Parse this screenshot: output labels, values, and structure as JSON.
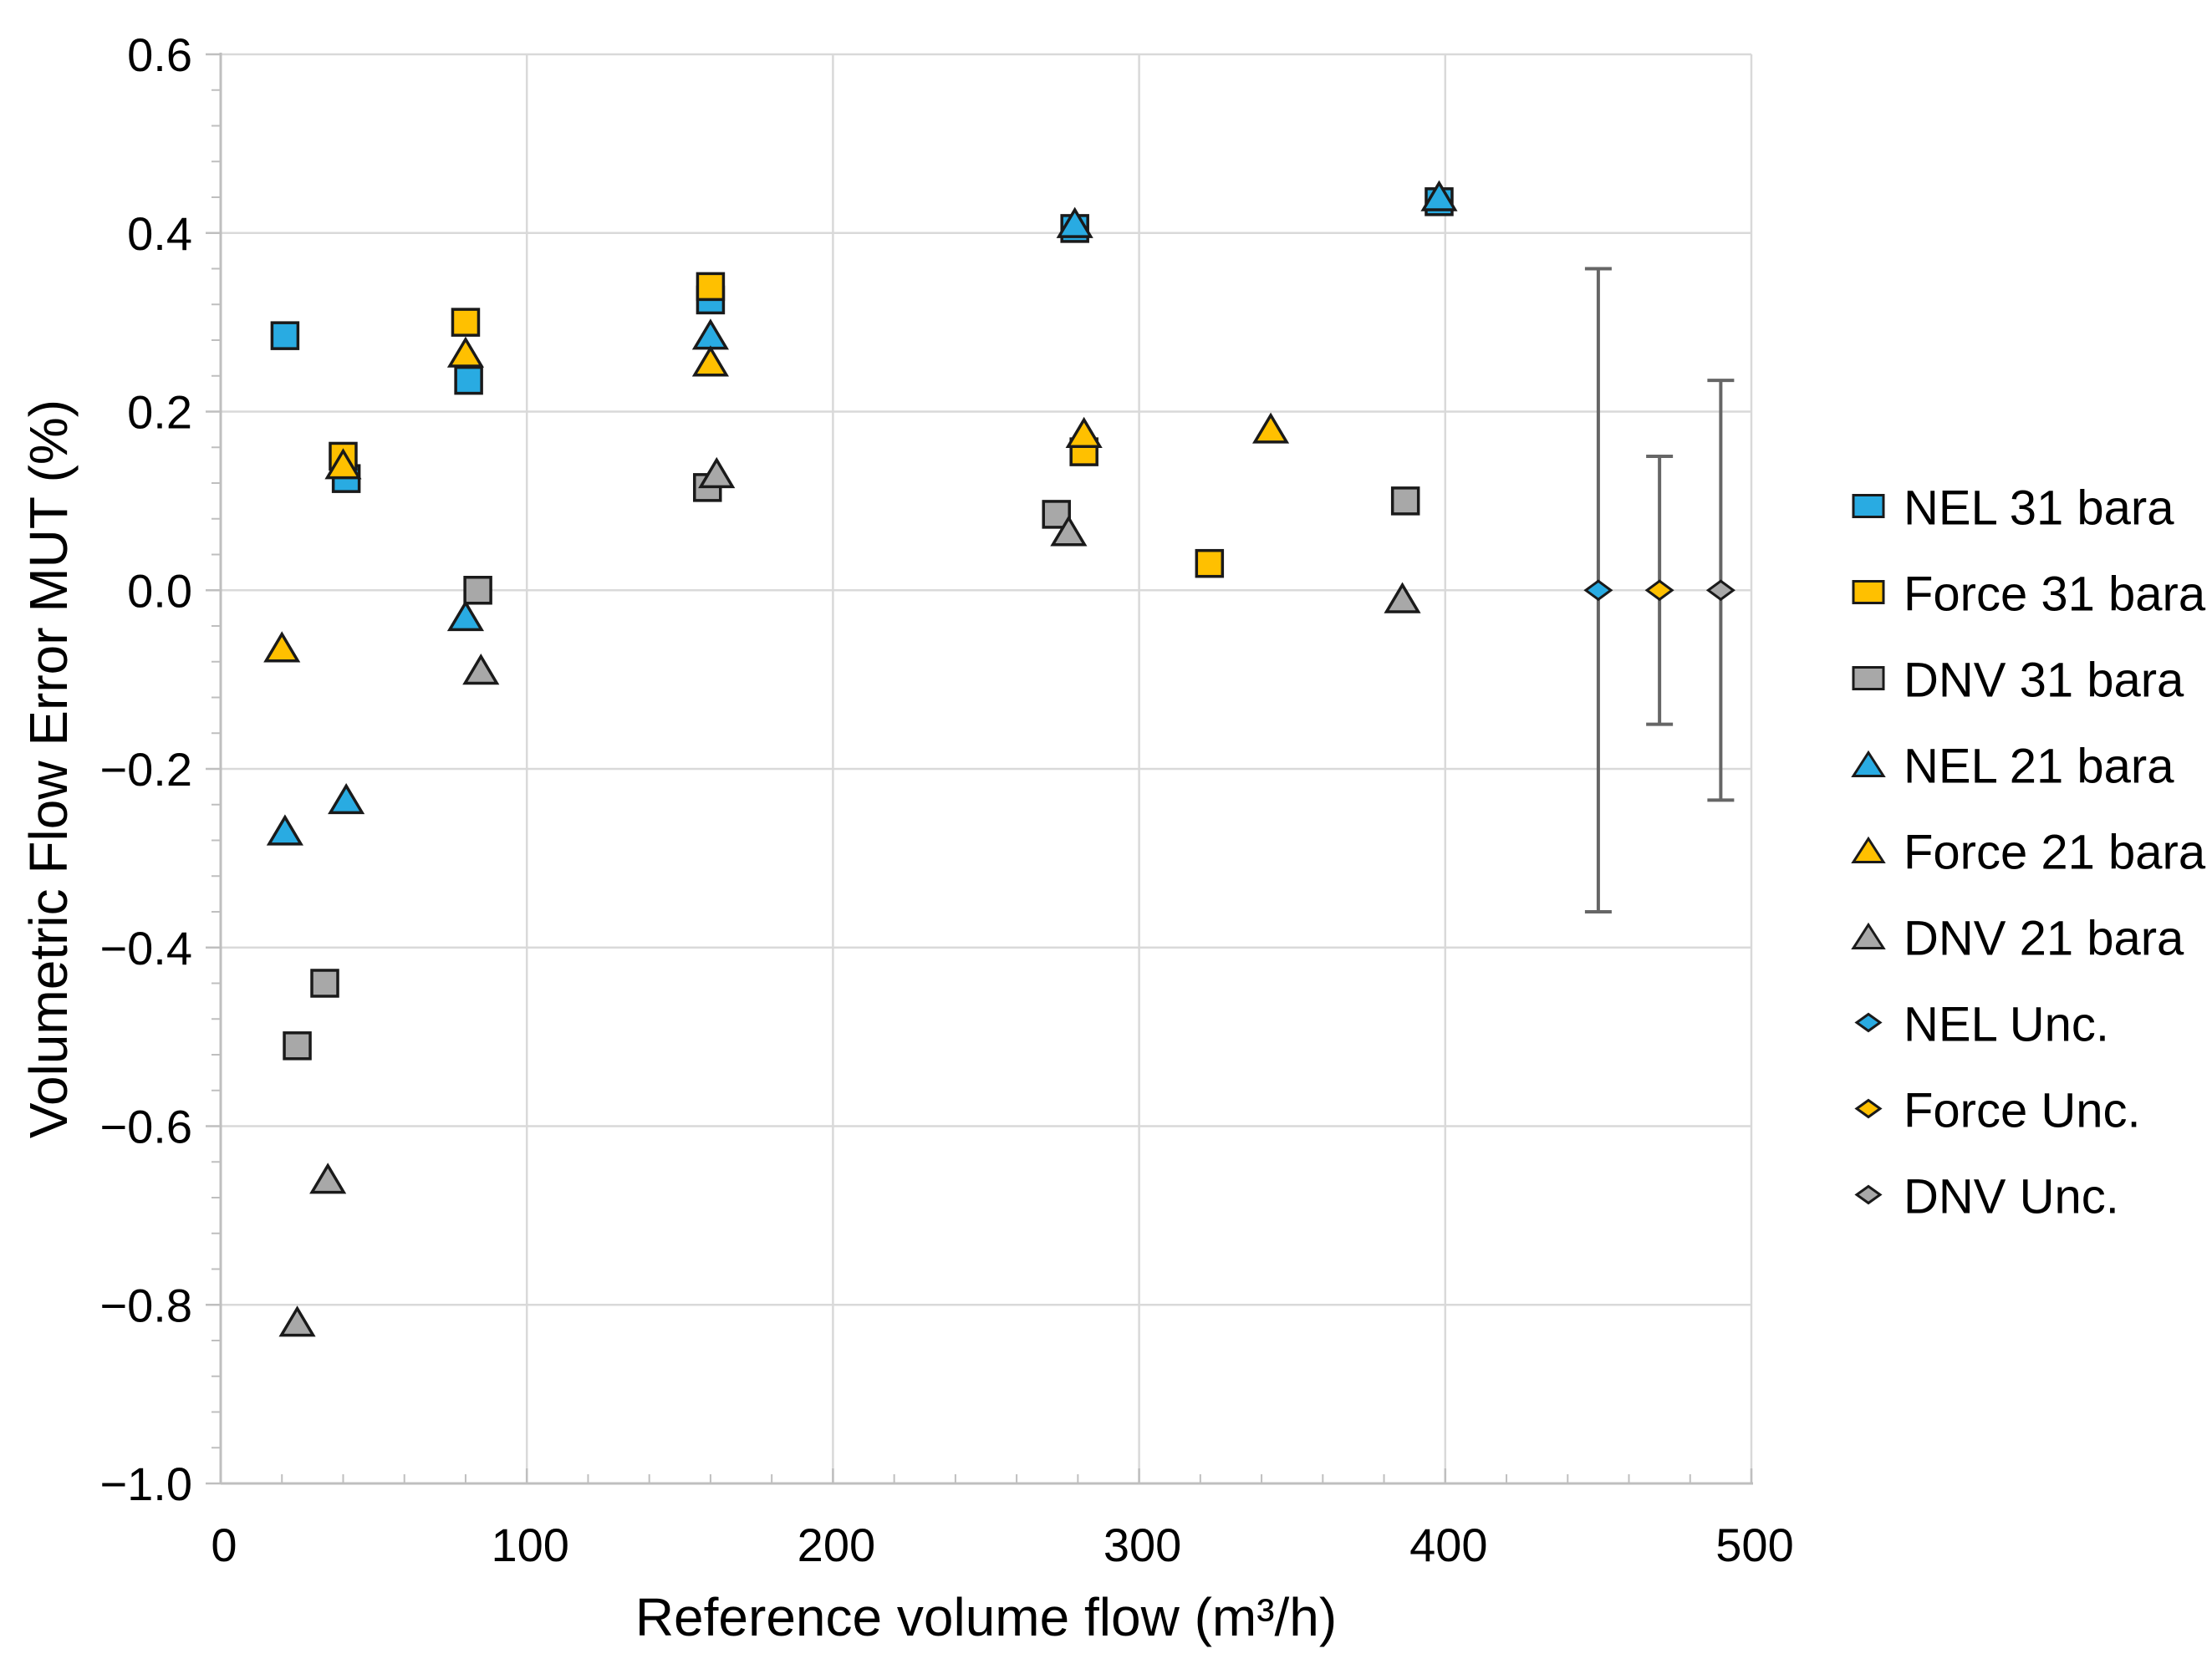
{
  "chart_data": {
    "type": "scatter",
    "title": "",
    "xlabel": "Reference volume flow (m³/h)",
    "ylabel": "Volumetric Flow Error MUT (%)",
    "xlim": [
      0,
      500
    ],
    "ylim": [
      -1.0,
      0.6
    ],
    "x_tick_values": [
      0,
      100,
      200,
      300,
      400,
      500
    ],
    "x_tick_labels": [
      "0",
      "100",
      "200",
      "300",
      "400",
      "500"
    ],
    "y_tick_values": [
      0.6,
      0.4,
      0.2,
      0.0,
      -0.2,
      -0.4,
      -0.6,
      -0.8,
      -1.0
    ],
    "y_tick_labels": [
      "0.6",
      "0.4",
      "0.2",
      "0.0",
      "−0.2",
      "−0.4",
      "−0.6",
      "−0.8",
      "−1.0"
    ],
    "x_minor_step": 20,
    "y_minor_step": 0.04,
    "grid": true,
    "legend_position": "right",
    "series": [
      {
        "name": "NEL 31 bara",
        "marker": "square",
        "color": "#29ABE2",
        "points": [
          [
            21,
            0.285
          ],
          [
            41,
            0.125
          ],
          [
            81,
            0.235
          ],
          [
            160,
            0.325
          ],
          [
            279,
            0.405
          ],
          [
            398,
            0.435
          ]
        ]
      },
      {
        "name": "Force 31 bara",
        "marker": "square",
        "color": "#FFC000",
        "points": [
          [
            40,
            0.15
          ],
          [
            80,
            0.3
          ],
          [
            160,
            0.34
          ],
          [
            282,
            0.155
          ],
          [
            323,
            0.03
          ]
        ]
      },
      {
        "name": "DNV 31 bara",
        "marker": "square",
        "color": "#A8A8A8",
        "points": [
          [
            25,
            -0.51
          ],
          [
            34,
            -0.44
          ],
          [
            84,
            0.0
          ],
          [
            159,
            0.115
          ],
          [
            273,
            0.085
          ],
          [
            387,
            0.1
          ]
        ]
      },
      {
        "name": "NEL 21 bara",
        "marker": "triangle",
        "color": "#29ABE2",
        "points": [
          [
            21,
            -0.27
          ],
          [
            41,
            -0.235
          ],
          [
            80,
            -0.03
          ],
          [
            160,
            0.285
          ],
          [
            279,
            0.41
          ],
          [
            398,
            0.44
          ]
        ]
      },
      {
        "name": "Force 21 bara",
        "marker": "triangle",
        "color": "#FFC000",
        "points": [
          [
            20,
            -0.065
          ],
          [
            40,
            0.14
          ],
          [
            80,
            0.265
          ],
          [
            160,
            0.255
          ],
          [
            282,
            0.175
          ],
          [
            343,
            0.18
          ]
        ]
      },
      {
        "name": "DNV 21 bara",
        "marker": "triangle",
        "color": "#A8A8A8",
        "points": [
          [
            25,
            -0.82
          ],
          [
            35,
            -0.66
          ],
          [
            85,
            -0.09
          ],
          [
            162,
            0.13
          ],
          [
            277,
            0.065
          ],
          [
            386,
            -0.01
          ]
        ]
      },
      {
        "name": "NEL Unc.",
        "marker": "diamond",
        "color": "#29ABE2",
        "points": [
          [
            450,
            0.0
          ]
        ],
        "error_plus": 0.36,
        "error_minus": 0.36
      },
      {
        "name": "Force Unc.",
        "marker": "diamond",
        "color": "#FFC000",
        "points": [
          [
            470,
            0.0
          ]
        ],
        "error_plus": 0.15,
        "error_minus": 0.15
      },
      {
        "name": "DNV Unc.",
        "marker": "diamond",
        "color": "#A8A8A8",
        "points": [
          [
            490,
            0.0
          ]
        ],
        "error_plus": 0.235,
        "error_minus": 0.235
      }
    ]
  },
  "colors": {
    "gridline": "#D9D9D9",
    "axis_line": "#BFBFBF",
    "tick_mark": "#BFBFBF",
    "marker_border": "#1A1A1A",
    "error_bar": "#666666",
    "text": "#000000"
  }
}
